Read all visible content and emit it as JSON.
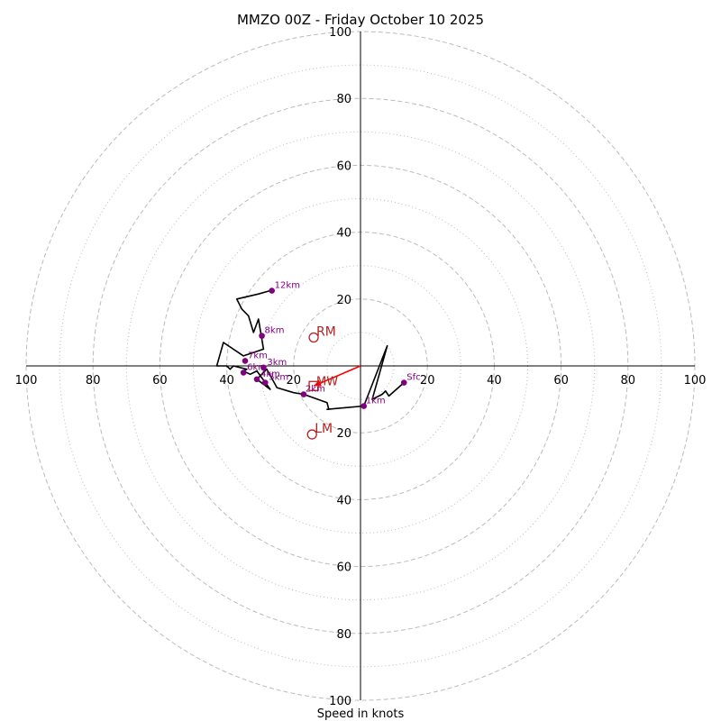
{
  "chart_data": {
    "type": "hodograph",
    "title": "MMZO 00Z - Friday October 10 2025",
    "xlabel": "Speed in knots",
    "ring_range": [
      0,
      100
    ],
    "ring_major": [
      20,
      40,
      60,
      80,
      100
    ],
    "ring_minor": [
      10,
      30,
      50,
      70,
      90
    ],
    "tick_labels": [
      "20",
      "40",
      "60",
      "80",
      "100"
    ],
    "colors": {
      "trace": "#000000",
      "height_marker": "#800080",
      "storm_motion": "#b22222",
      "shear_vector": "#ff0000",
      "ring": "#bbbbbb",
      "axis": "#000000"
    },
    "trace": [
      [
        13,
        -5
      ],
      [
        8.5,
        -9
      ],
      [
        7.5,
        -7.5
      ],
      [
        6.5,
        -8.5
      ],
      [
        3.5,
        -10
      ],
      [
        8,
        6
      ],
      [
        1,
        -12
      ],
      [
        -10,
        -13
      ],
      [
        -9.5,
        -13
      ],
      [
        -10,
        -11
      ],
      [
        -17,
        -8.5
      ],
      [
        -20,
        -8
      ],
      [
        -25,
        -6.5
      ],
      [
        -28,
        -1
      ],
      [
        -31,
        -4
      ],
      [
        -27,
        -7
      ],
      [
        -31,
        -1.5
      ],
      [
        -33,
        -2.5
      ],
      [
        -35,
        -1.5
      ],
      [
        -34,
        -1
      ],
      [
        -38,
        0
      ],
      [
        -39,
        -1
      ],
      [
        -40,
        0
      ],
      [
        -43,
        0
      ],
      [
        -41,
        7
      ],
      [
        -35,
        3
      ],
      [
        -29,
        5
      ],
      [
        -30.5,
        14
      ],
      [
        -32,
        10
      ],
      [
        -33.5,
        15
      ],
      [
        -35.5,
        17
      ],
      [
        -37,
        20
      ],
      [
        -30.5,
        21.5
      ],
      [
        -27,
        22.5
      ]
    ],
    "height_markers": [
      {
        "label": "Sfc",
        "u": 13,
        "v": -5,
        "label_dx": 3,
        "label_dy": -3
      },
      {
        "label": "1km",
        "u": 1,
        "v": -12,
        "label_dx": 2,
        "label_dy": -3
      },
      {
        "label": "2km",
        "u": -17,
        "v": -8.5,
        "label_dx": 2,
        "label_dy": -3
      },
      {
        "label": "3km",
        "u": -29,
        "v": -0.5,
        "label_dx": 4,
        "label_dy": -3
      },
      {
        "label": "4km",
        "u": -31,
        "v": -4,
        "label_dx": 4,
        "label_dy": -3
      },
      {
        "label": "5km",
        "u": -28.5,
        "v": -5,
        "label_dx": 4,
        "label_dy": -3
      },
      {
        "label": "6km",
        "u": -35,
        "v": -2,
        "label_dx": 4,
        "label_dy": -3
      },
      {
        "label": "7km",
        "u": -34.5,
        "v": 1.5,
        "label_dx": 3,
        "label_dy": -3
      },
      {
        "label": "8km",
        "u": -29.5,
        "v": 9,
        "label_dx": 3,
        "label_dy": -3
      },
      {
        "label": "12km",
        "u": -26.5,
        "v": 22.5,
        "label_dx": 3,
        "label_dy": -3
      }
    ],
    "storm_motion": [
      {
        "label": "RM",
        "u": -14,
        "v": 8.5
      },
      {
        "label": "LM",
        "u": -14.5,
        "v": -20.5
      }
    ],
    "mean_wind": {
      "label": "MW",
      "u": -14,
      "v": -6
    },
    "shear_vector": {
      "from": [
        0,
        0
      ],
      "to": [
        -14,
        -6
      ]
    }
  }
}
